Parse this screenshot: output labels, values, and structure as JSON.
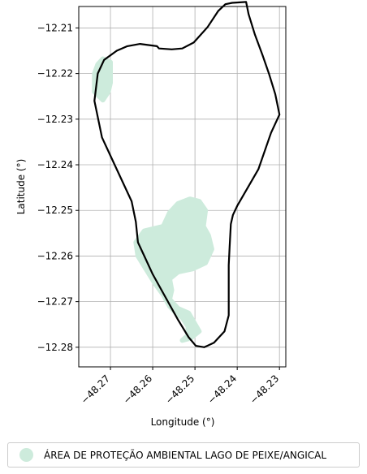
{
  "chart_data": {
    "type": "map",
    "xlabel": "Longitude (°)",
    "ylabel": "Latitude (°)",
    "xlim": [
      -48.2775,
      -48.2285
    ],
    "ylim": [
      -12.2843,
      -12.2053
    ],
    "x_ticks": [
      -48.27,
      -48.26,
      -48.25,
      -48.24,
      -48.23
    ],
    "x_tick_labels": [
      "−48.27",
      "−48.26",
      "−48.25",
      "−48.24",
      "−48.23"
    ],
    "y_ticks": [
      -12.21,
      -12.22,
      -12.23,
      -12.24,
      -12.25,
      -12.26,
      -12.27,
      -12.28
    ],
    "y_tick_labels": [
      "−12.21",
      "−12.22",
      "−12.23",
      "−12.24",
      "−12.25",
      "−12.26",
      "−12.27",
      "−12.28"
    ],
    "grid": true,
    "legend_position": "bottom",
    "legend_entries": [
      {
        "label": "ÁREA DE PROTEÇÃO AMBIENTAL LAGO DE PEIXE/ANGICAL",
        "color": "#cdebdc"
      }
    ],
    "boundary": {
      "color": "#000000",
      "coordinates": [
        [
          -48.2379,
          -12.2043
        ],
        [
          -48.2412,
          -12.2045
        ],
        [
          -48.2428,
          -12.2048
        ],
        [
          -48.2445,
          -12.2063
        ],
        [
          -48.247,
          -12.2098
        ],
        [
          -48.2503,
          -12.2132
        ],
        [
          -48.253,
          -12.2145
        ],
        [
          -48.2555,
          -12.2147
        ],
        [
          -48.2585,
          -12.2145
        ],
        [
          -48.259,
          -12.214
        ],
        [
          -48.263,
          -12.2135
        ],
        [
          -48.266,
          -12.214
        ],
        [
          -48.2685,
          -12.215
        ],
        [
          -48.2715,
          -12.217
        ],
        [
          -48.273,
          -12.22
        ],
        [
          -48.2738,
          -12.226
        ],
        [
          -48.272,
          -12.234
        ],
        [
          -48.269,
          -12.24
        ],
        [
          -48.265,
          -12.248
        ],
        [
          -48.264,
          -12.2525
        ],
        [
          -48.2635,
          -12.257
        ],
        [
          -48.262,
          -12.26
        ],
        [
          -48.26,
          -12.264
        ],
        [
          -48.257,
          -12.269
        ],
        [
          -48.254,
          -12.274
        ],
        [
          -48.2515,
          -12.2778
        ],
        [
          -48.2498,
          -12.2797
        ],
        [
          -48.2478,
          -12.28
        ],
        [
          -48.2455,
          -12.279
        ],
        [
          -48.243,
          -12.2765
        ],
        [
          -48.242,
          -12.273
        ],
        [
          -48.242,
          -12.268
        ],
        [
          -48.242,
          -12.262
        ],
        [
          -48.2418,
          -12.258
        ],
        [
          -48.2415,
          -12.253
        ],
        [
          -48.241,
          -12.251
        ],
        [
          -48.24,
          -12.249
        ],
        [
          -48.235,
          -12.241
        ],
        [
          -48.232,
          -12.233
        ],
        [
          -48.23,
          -12.229
        ],
        [
          -48.231,
          -12.2245
        ],
        [
          -48.2325,
          -12.22
        ],
        [
          -48.234,
          -12.216
        ],
        [
          -48.2358,
          -12.2115
        ],
        [
          -48.2373,
          -12.207
        ],
        [
          -48.2379,
          -12.2043
        ]
      ]
    },
    "protected_area": {
      "name": "ÁREA DE PROTEÇÃO AMBIENTAL LAGO DE PEIXE/ANGICAL",
      "color": "#cdebdc",
      "pieces": [
        [
          [
            -48.2718,
            -12.2168
          ],
          [
            -48.27,
            -12.2175
          ],
          [
            -48.27,
            -12.2198
          ],
          [
            -48.27,
            -12.222
          ],
          [
            -48.2705,
            -12.224
          ],
          [
            -48.2718,
            -12.2258
          ],
          [
            -48.2738,
            -12.224
          ],
          [
            -48.2738,
            -12.22
          ],
          [
            -48.273,
            -12.218
          ]
        ],
        [
          [
            -48.2575,
            -12.2535
          ],
          [
            -48.262,
            -12.2545
          ],
          [
            -48.264,
            -12.257
          ],
          [
            -48.2635,
            -12.26
          ],
          [
            -48.2615,
            -12.263
          ],
          [
            -48.2595,
            -12.266
          ],
          [
            -48.2575,
            -12.2685
          ],
          [
            -48.256,
            -12.271
          ],
          [
            -48.2545,
            -12.2725
          ],
          [
            -48.253,
            -12.2735
          ],
          [
            -48.2516,
            -12.2755
          ],
          [
            -48.2518,
            -12.2775
          ],
          [
            -48.253,
            -12.2785
          ],
          [
            -48.251,
            -12.278
          ],
          [
            -48.249,
            -12.2765
          ],
          [
            -48.2515,
            -12.2725
          ],
          [
            -48.254,
            -12.2715
          ],
          [
            -48.256,
            -12.2695
          ],
          [
            -48.2555,
            -12.2675
          ],
          [
            -48.256,
            -12.265
          ],
          [
            -48.254,
            -12.2635
          ],
          [
            -48.2505,
            -12.2628
          ],
          [
            -48.2475,
            -12.2615
          ],
          [
            -48.246,
            -12.2585
          ],
          [
            -48.2468,
            -12.2555
          ],
          [
            -48.248,
            -12.2535
          ],
          [
            -48.2475,
            -12.25
          ],
          [
            -48.249,
            -12.248
          ],
          [
            -48.2512,
            -12.2475
          ],
          [
            -48.254,
            -12.2485
          ],
          [
            -48.256,
            -12.2505
          ]
        ]
      ]
    }
  }
}
